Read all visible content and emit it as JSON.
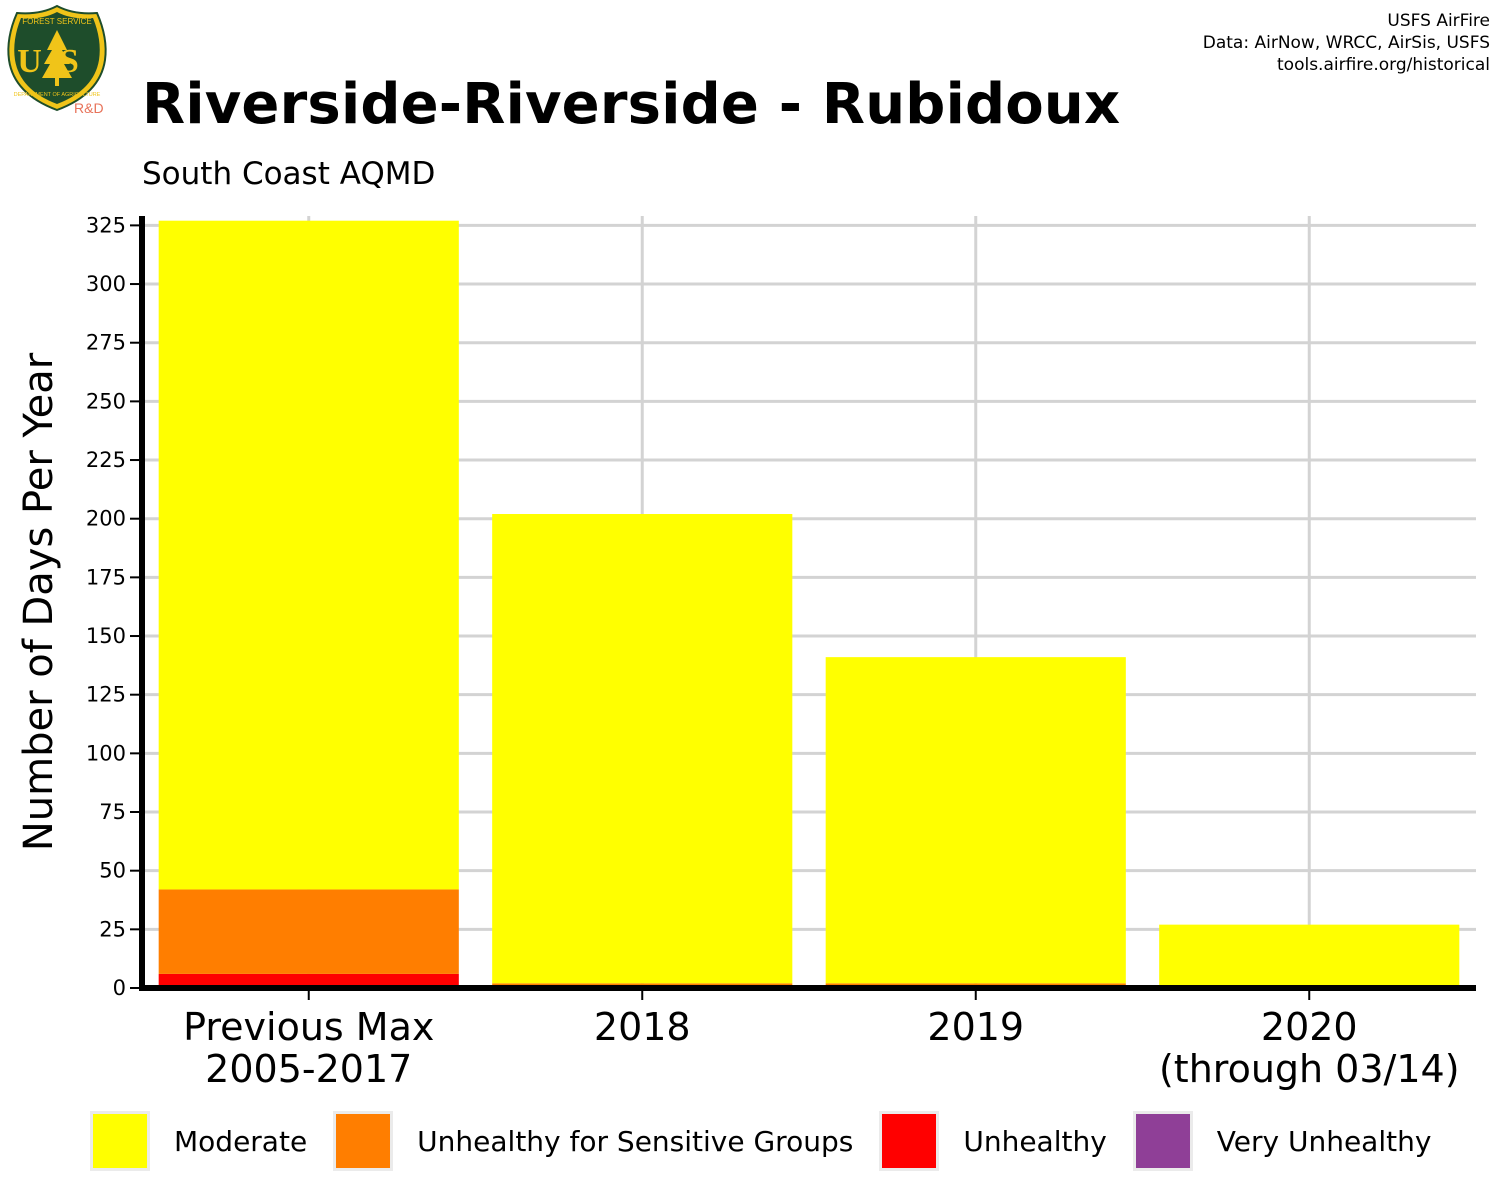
{
  "logo": {
    "top_text": "FOREST SERVICE",
    "letters": "US",
    "bottom_text": "DEPARTMENT OF AGRICULTURE",
    "rd": "R&D"
  },
  "header": {
    "title": "Riverside-Riverside - Rubidoux",
    "subtitle": "South Coast AQMD",
    "credits": [
      "USFS AirFire",
      "Data: AirNow, WRCC, AirSis, USFS",
      "tools.airfire.org/historical"
    ]
  },
  "chart_data": {
    "type": "bar",
    "stacked": true,
    "ylabel": "Number of Days Per Year",
    "xlabel": "",
    "ylim": [
      0,
      329
    ],
    "yticks": [
      0,
      25,
      50,
      75,
      100,
      125,
      150,
      175,
      200,
      225,
      250,
      275,
      300,
      325
    ],
    "grid": true,
    "legend_position": "bottom",
    "categories": [
      [
        "Previous Max",
        "2005-2017"
      ],
      [
        "2018"
      ],
      [
        "2019"
      ],
      [
        "2020",
        "(through 03/14)"
      ]
    ],
    "series": [
      {
        "name": "Moderate",
        "color": "#ffff00",
        "values": [
          285,
          200,
          139,
          27
        ]
      },
      {
        "name": "Unhealthy for Sensitive Groups",
        "color": "#ff7e00",
        "values": [
          36,
          2,
          2,
          0
        ]
      },
      {
        "name": "Unhealthy",
        "color": "#ff0000",
        "values": [
          6,
          0,
          0,
          0
        ]
      },
      {
        "name": "Very Unhealthy",
        "color": "#8f3f97",
        "values": [
          0,
          0,
          0,
          0
        ]
      }
    ]
  }
}
